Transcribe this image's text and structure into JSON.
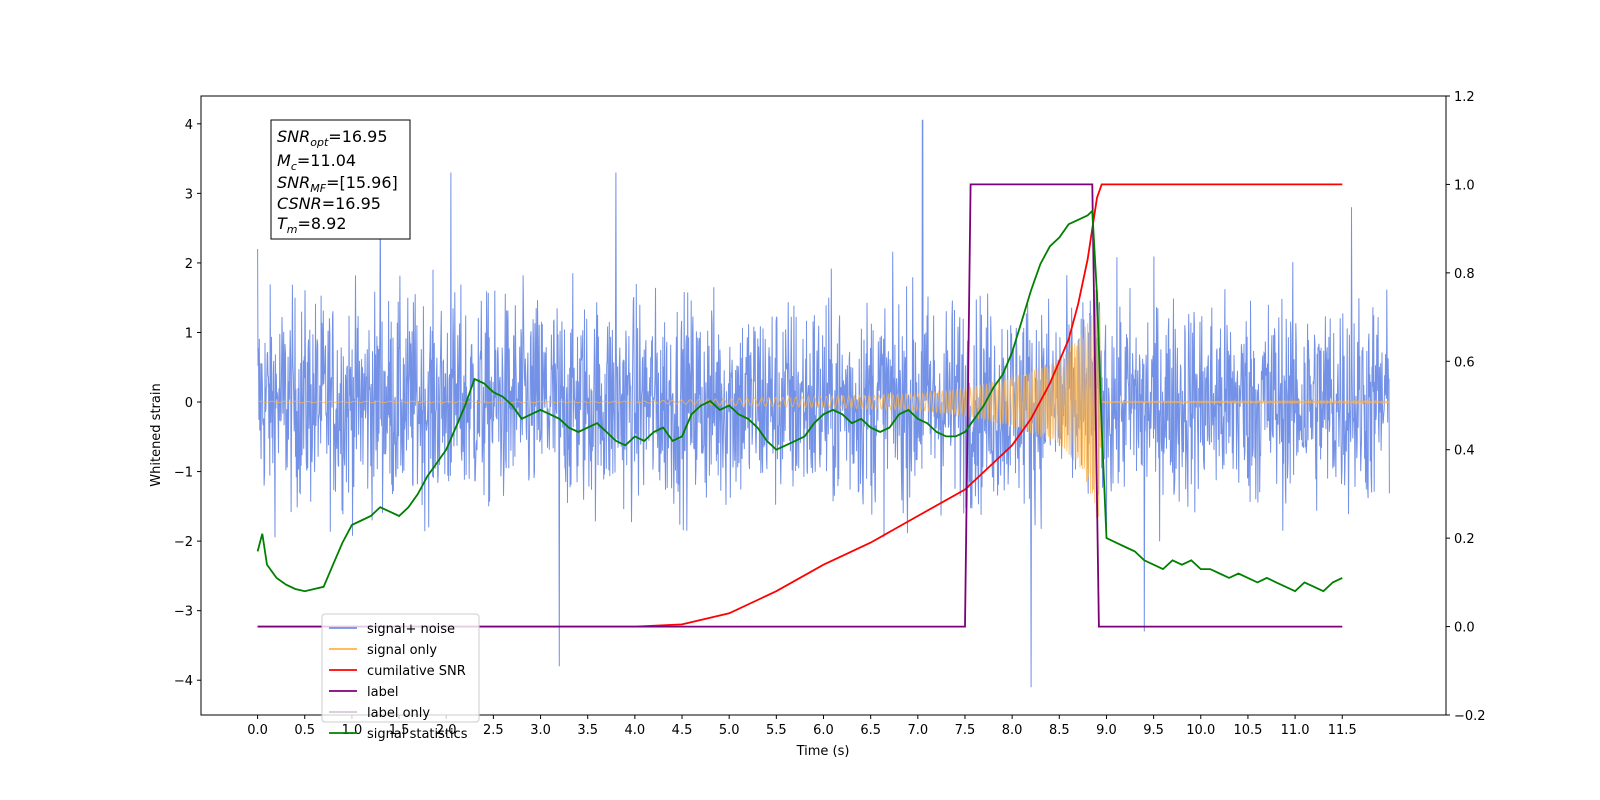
{
  "chart_data": {
    "type": "line",
    "xlabel": "Time (s)",
    "ylabel": "Whitened strain",
    "xlim": [
      -0.6,
      12.6
    ],
    "ylim_left": [
      -4.5,
      4.4
    ],
    "ylim_right": [
      -0.2,
      1.2
    ],
    "x_ticks": [
      "0.0",
      "0.5",
      "1.0",
      "1.5",
      "2.0",
      "2.5",
      "3.0",
      "3.5",
      "4.0",
      "4.5",
      "5.0",
      "5.5",
      "6.0",
      "6.5",
      "7.0",
      "7.5",
      "8.0",
      "8.5",
      "9.0",
      "9.5",
      "10.0",
      "10.5",
      "11.0",
      "11.5"
    ],
    "y_ticks_left": [
      "−4",
      "−3",
      "−2",
      "−1",
      "0",
      "1",
      "2",
      "3",
      "4"
    ],
    "y_ticks_right": [
      "−0.2",
      "0.0",
      "0.2",
      "0.4",
      "0.6",
      "0.8",
      "1.0",
      "1.2"
    ],
    "legend_position": "lower-left",
    "info_box": {
      "snr_opt": "=16.95",
      "mc": "=11.04",
      "snr_mf": "=[15.96]",
      "csnr": "=16.95",
      "tm": "=8.92"
    },
    "series": [
      {
        "name": "signal+ noise",
        "axis": "left",
        "color": "#7391e6",
        "noise_band": true,
        "approx_extremes": [
          [
            0.0,
            2.2
          ],
          [
            1.3,
            3.3
          ],
          [
            2.05,
            3.3
          ],
          [
            3.2,
            -3.8
          ],
          [
            3.8,
            3.3
          ],
          [
            7.05,
            4.05
          ],
          [
            8.2,
            -4.1
          ],
          [
            9.4,
            -3.3
          ],
          [
            11.6,
            2.8
          ]
        ]
      },
      {
        "name": "signal only",
        "axis": "left",
        "color": "#ffb347",
        "envelope": [
          [
            0.0,
            0.01
          ],
          [
            4.0,
            0.01
          ],
          [
            5.0,
            0.05
          ],
          [
            6.0,
            0.08
          ],
          [
            7.0,
            0.12
          ],
          [
            7.5,
            0.2
          ],
          [
            8.0,
            0.35
          ],
          [
            8.5,
            0.6
          ],
          [
            8.75,
            1.0
          ],
          [
            8.85,
            1.4
          ],
          [
            8.92,
            1.8
          ],
          [
            8.95,
            0.01
          ],
          [
            12.0,
            0.01
          ]
        ]
      },
      {
        "name": "cumilative SNR",
        "axis": "right",
        "color": "#ff0000",
        "x": [
          0.0,
          4.0,
          4.5,
          5.0,
          5.5,
          6.0,
          6.5,
          7.0,
          7.5,
          7.8,
          8.0,
          8.2,
          8.4,
          8.6,
          8.7,
          8.8,
          8.85,
          8.9,
          8.95,
          9.0,
          11.5
        ],
        "y": [
          0.0,
          0.0,
          0.005,
          0.03,
          0.08,
          0.14,
          0.19,
          0.25,
          0.31,
          0.37,
          0.41,
          0.47,
          0.55,
          0.65,
          0.73,
          0.83,
          0.9,
          0.97,
          1.0,
          1.0,
          1.0
        ]
      },
      {
        "name": "label",
        "axis": "right",
        "color": "#7b007b",
        "x": [
          0.0,
          7.5,
          7.56,
          8.85,
          8.92,
          11.5
        ],
        "y": [
          0.0,
          0.0,
          1.0,
          1.0,
          0.0,
          0.0
        ]
      },
      {
        "name": "label only",
        "axis": "right",
        "color": "#d9c6d9",
        "hidden": true
      },
      {
        "name": "signal statistics",
        "axis": "right",
        "color": "#008000",
        "x": [
          0.0,
          0.05,
          0.1,
          0.2,
          0.3,
          0.4,
          0.5,
          0.6,
          0.7,
          0.8,
          0.9,
          1.0,
          1.1,
          1.2,
          1.3,
          1.4,
          1.5,
          1.6,
          1.7,
          1.8,
          1.9,
          2.0,
          2.1,
          2.2,
          2.3,
          2.4,
          2.5,
          2.6,
          2.7,
          2.8,
          2.9,
          3.0,
          3.1,
          3.2,
          3.3,
          3.4,
          3.5,
          3.6,
          3.7,
          3.8,
          3.9,
          4.0,
          4.1,
          4.2,
          4.3,
          4.4,
          4.5,
          4.6,
          4.7,
          4.8,
          4.9,
          5.0,
          5.1,
          5.2,
          5.3,
          5.4,
          5.5,
          5.6,
          5.7,
          5.8,
          5.9,
          6.0,
          6.1,
          6.2,
          6.3,
          6.4,
          6.5,
          6.6,
          6.7,
          6.8,
          6.9,
          7.0,
          7.1,
          7.2,
          7.3,
          7.4,
          7.5,
          7.6,
          7.7,
          7.8,
          7.9,
          8.0,
          8.1,
          8.2,
          8.3,
          8.4,
          8.5,
          8.6,
          8.7,
          8.8,
          8.85,
          8.9,
          8.95,
          9.0,
          9.1,
          9.2,
          9.3,
          9.4,
          9.5,
          9.6,
          9.7,
          9.8,
          9.9,
          10.0,
          10.1,
          10.2,
          10.3,
          10.4,
          10.5,
          10.6,
          10.7,
          10.8,
          10.9,
          11.0,
          11.1,
          11.2,
          11.3,
          11.4,
          11.5
        ],
        "y": [
          0.17,
          0.21,
          0.14,
          0.11,
          0.095,
          0.085,
          0.08,
          0.085,
          0.09,
          0.14,
          0.19,
          0.23,
          0.24,
          0.25,
          0.27,
          0.26,
          0.25,
          0.27,
          0.3,
          0.34,
          0.37,
          0.4,
          0.45,
          0.5,
          0.56,
          0.55,
          0.53,
          0.52,
          0.5,
          0.47,
          0.48,
          0.49,
          0.48,
          0.47,
          0.45,
          0.44,
          0.45,
          0.46,
          0.44,
          0.42,
          0.41,
          0.43,
          0.42,
          0.44,
          0.45,
          0.42,
          0.43,
          0.48,
          0.5,
          0.51,
          0.49,
          0.5,
          0.48,
          0.47,
          0.45,
          0.42,
          0.4,
          0.41,
          0.42,
          0.43,
          0.46,
          0.48,
          0.49,
          0.48,
          0.46,
          0.47,
          0.45,
          0.44,
          0.45,
          0.48,
          0.49,
          0.47,
          0.46,
          0.44,
          0.43,
          0.43,
          0.44,
          0.47,
          0.5,
          0.54,
          0.57,
          0.62,
          0.69,
          0.76,
          0.82,
          0.86,
          0.88,
          0.91,
          0.92,
          0.93,
          0.94,
          0.75,
          0.45,
          0.2,
          0.19,
          0.18,
          0.17,
          0.15,
          0.14,
          0.13,
          0.15,
          0.14,
          0.15,
          0.13,
          0.13,
          0.12,
          0.11,
          0.12,
          0.11,
          0.1,
          0.11,
          0.1,
          0.09,
          0.08,
          0.1,
          0.09,
          0.08,
          0.1,
          0.11
        ]
      }
    ]
  }
}
